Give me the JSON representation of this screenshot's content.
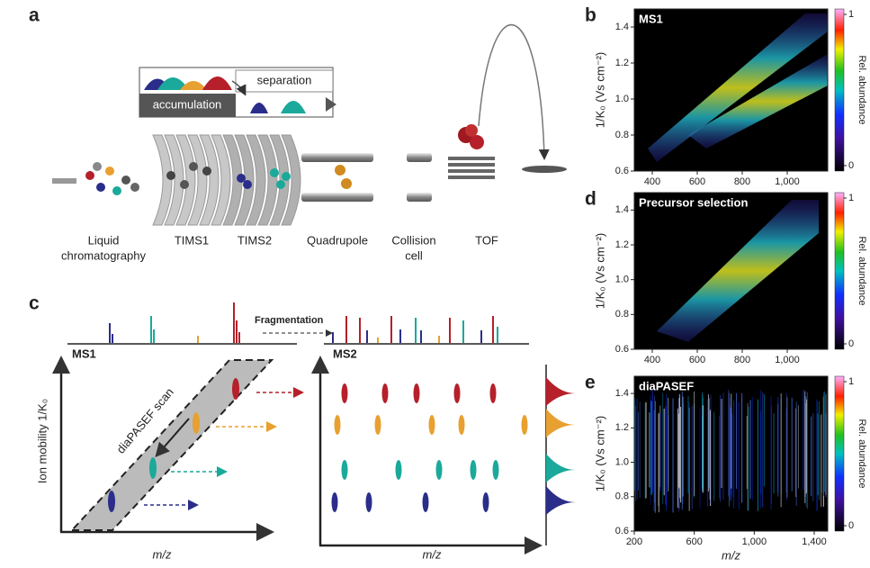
{
  "panel_a": {
    "label": "a",
    "separation": "separation",
    "accumulation": "accumulation",
    "components": [
      [
        "Liquid",
        "chromatography"
      ],
      [
        "TIMS1"
      ],
      [
        "TIMS2"
      ],
      [
        "Quadrupole"
      ],
      [
        "Collision",
        "cell"
      ],
      [
        "TOF"
      ]
    ]
  },
  "panel_c": {
    "label": "c",
    "fragmentation": "Fragmentation",
    "ms1": "MS1",
    "ms2": "MS2",
    "scan": "diaPASEF scan",
    "ylabel": "Ion mobility 1/K₀",
    "xlabel_left": "m/z",
    "xlabel_right": "m/z"
  },
  "heatmaps": [
    {
      "label": "b",
      "title": "MS1",
      "xlim": [
        320,
        1180
      ],
      "xticks": [
        400,
        600,
        800,
        {
          "value": 1000,
          "label": "1,000"
        }
      ],
      "ylim": [
        0.6,
        1.5
      ],
      "yticks": [
        0.6,
        0.8,
        {
          "value": 1,
          "label": "1.0"
        },
        1.2,
        1.4
      ],
      "ylabel": "1/K₀ (Vs cm⁻²)",
      "colorbar": {
        "label": "Rel. abundance",
        "ticks": [
          0,
          1
        ]
      }
    },
    {
      "label": "d",
      "title": "Precursor selection",
      "xlim": [
        320,
        1180
      ],
      "xticks": [
        400,
        600,
        800,
        {
          "value": 1000,
          "label": "1,000"
        }
      ],
      "ylim": [
        0.6,
        1.5
      ],
      "yticks": [
        0.6,
        0.8,
        {
          "value": 1,
          "label": "1.0"
        },
        1.2,
        1.4
      ],
      "ylabel": "1/K₀ (Vs cm⁻²)",
      "colorbar": {
        "label": "Rel. abundance",
        "ticks": [
          0,
          1
        ]
      }
    },
    {
      "label": "e",
      "title": "diaPASEF",
      "xlim": [
        200,
        1490
      ],
      "xticks": [
        200,
        600,
        {
          "value": 1000,
          "label": "1,000"
        },
        {
          "value": 1400,
          "label": "1,400"
        }
      ],
      "ylim": [
        0.6,
        1.5
      ],
      "yticks": [
        0.6,
        0.8,
        {
          "value": 1,
          "label": "1.0"
        },
        1.2,
        1.4
      ],
      "ylabel": "1/K₀ (Vs cm⁻²)",
      "xlabel": "m/z",
      "colorbar": {
        "label": "Rel. abundance",
        "ticks": [
          0,
          1
        ]
      }
    }
  ]
}
